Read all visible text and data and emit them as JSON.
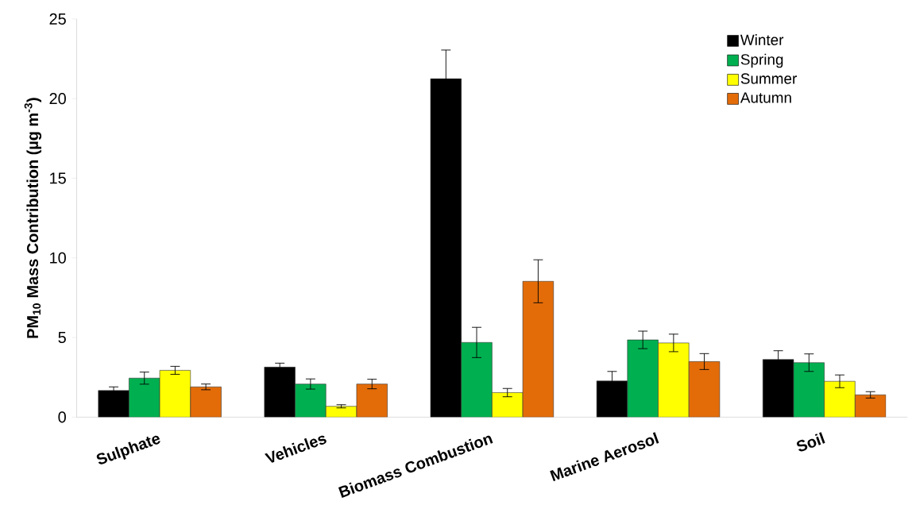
{
  "chart_data": {
    "type": "bar",
    "ylabel": "PM$_{10}$ Mass Contribution (µg m$^{-3}$)",
    "categories": [
      "Sulphate",
      "Vehicles",
      "Biomass Combustion",
      "Marine Aerosol",
      "Soil"
    ],
    "series": [
      {
        "name": "Winter",
        "color": "#000000",
        "values": [
          1.67,
          3.14,
          21.25,
          2.27,
          3.62
        ],
        "errors": [
          0.23,
          0.25,
          1.8,
          0.6,
          0.55
        ]
      },
      {
        "name": "Spring",
        "color": "#00b050",
        "values": [
          2.45,
          2.08,
          4.69,
          4.85,
          3.42
        ],
        "errors": [
          0.38,
          0.32,
          0.95,
          0.55,
          0.55
        ]
      },
      {
        "name": "Summer",
        "color": "#ffff00",
        "values": [
          2.94,
          0.68,
          1.54,
          4.66,
          2.25
        ],
        "errors": [
          0.25,
          0.1,
          0.26,
          0.55,
          0.4
        ]
      },
      {
        "name": "Autumn",
        "color": "#e36c09",
        "values": [
          1.9,
          2.08,
          8.53,
          3.49,
          1.4
        ],
        "errors": [
          0.18,
          0.3,
          1.35,
          0.5,
          0.2
        ]
      }
    ],
    "ylim": [
      0,
      25
    ],
    "yticks": [
      0,
      5,
      10,
      15,
      20,
      25
    ],
    "legend": "top right"
  }
}
